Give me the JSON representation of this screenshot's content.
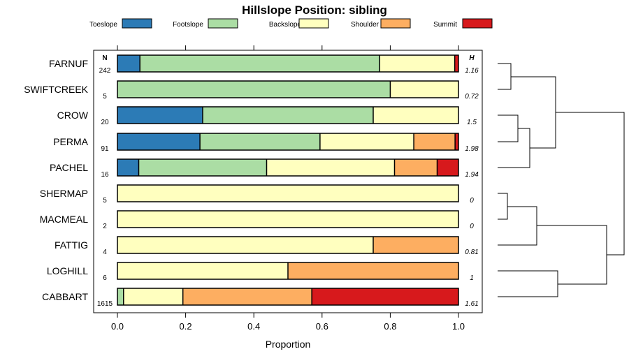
{
  "chart_data": {
    "type": "stacked-bar-horizontal",
    "title": "Hillslope Position: sibling",
    "xlabel": "Proportion",
    "xlim": [
      0,
      1
    ],
    "xticks": [
      "0.0",
      "0.2",
      "0.4",
      "0.6",
      "0.8",
      "1.0"
    ],
    "n_header": "N",
    "h_header": "H",
    "legend": [
      {
        "name": "Toeslope",
        "color": "#2C7BB6"
      },
      {
        "name": "Footslope",
        "color": "#ABDDA4"
      },
      {
        "name": "Backslope",
        "color": "#FFFFBF"
      },
      {
        "name": "Shoulder",
        "color": "#FDAE61"
      },
      {
        "name": "Summit",
        "color": "#D7191C"
      }
    ],
    "rows": [
      {
        "label": "FARNUF",
        "n": "242",
        "h": "1.16",
        "values": [
          0.066,
          0.703,
          0.22,
          0.0,
          0.011
        ]
      },
      {
        "label": "SWIFTCREEK",
        "n": "5",
        "h": "0.72",
        "values": [
          0.0,
          0.8,
          0.2,
          0.0,
          0.0
        ]
      },
      {
        "label": "CROW",
        "n": "20",
        "h": "1.5",
        "values": [
          0.25,
          0.5,
          0.25,
          0.0,
          0.0
        ]
      },
      {
        "label": "PERMA",
        "n": "91",
        "h": "1.98",
        "values": [
          0.242,
          0.352,
          0.275,
          0.121,
          0.01
        ]
      },
      {
        "label": "PACHEL",
        "n": "16",
        "h": "1.94",
        "values": [
          0.0625,
          0.375,
          0.375,
          0.125,
          0.0625
        ]
      },
      {
        "label": "SHERMAP",
        "n": "5",
        "h": "0",
        "values": [
          0.0,
          0.0,
          1.0,
          0.0,
          0.0
        ]
      },
      {
        "label": "MACMEAL",
        "n": "2",
        "h": "0",
        "values": [
          0.0,
          0.0,
          1.0,
          0.0,
          0.0
        ]
      },
      {
        "label": "FATTIG",
        "n": "4",
        "h": "0.81",
        "values": [
          0.0,
          0.0,
          0.75,
          0.25,
          0.0
        ]
      },
      {
        "label": "LOGHILL",
        "n": "6",
        "h": "1",
        "values": [
          0.0,
          0.0,
          0.5,
          0.5,
          0.0
        ]
      },
      {
        "label": "CABBART",
        "n": "1615",
        "h": "1.61",
        "values": [
          0.0,
          0.018,
          0.174,
          0.378,
          0.43
        ]
      }
    ]
  }
}
